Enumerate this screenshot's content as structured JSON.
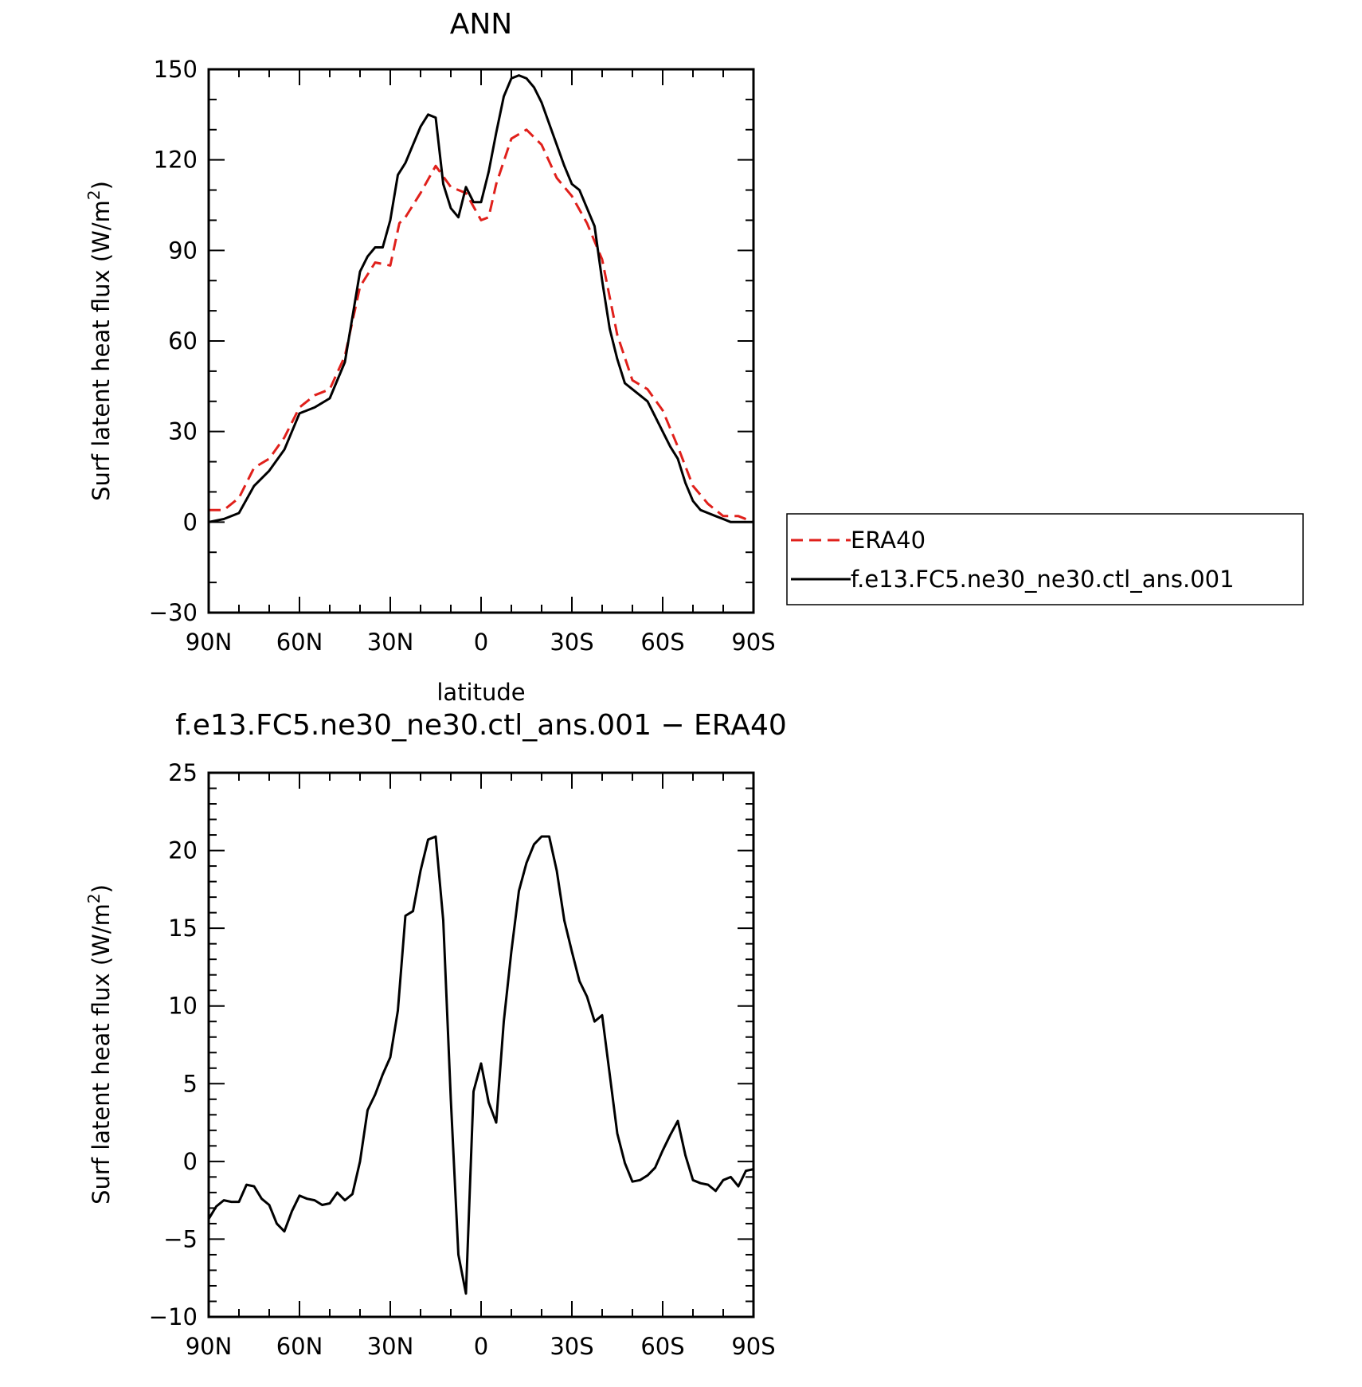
{
  "chart_data": [
    {
      "type": "line",
      "title": "ANN",
      "xlabel": "latitude",
      "ylabel": "Surf latent heat flux (W/m²)",
      "ylim": [
        -30,
        150
      ],
      "xlim": [
        -90,
        90
      ],
      "x_ticks": [
        -90,
        -60,
        -30,
        0,
        30,
        60,
        90
      ],
      "x_tick_labels": [
        "90N",
        "60N",
        "30N",
        "0",
        "30S",
        "60S",
        "90S"
      ],
      "y_ticks": [
        -30,
        0,
        30,
        60,
        90,
        120,
        150
      ],
      "y_tick_labels": [
        "−30",
        "0",
        "30",
        "60",
        "90",
        "120",
        "150"
      ],
      "y_minor_step": 10,
      "x_minor_step": 10,
      "grid": false,
      "legend_position": "right",
      "series": [
        {
          "name": "ERA40",
          "color": "#e0201b",
          "dash": "dashed",
          "x": [
            -90,
            -85,
            -80,
            -75,
            -70,
            -65,
            -60,
            -55,
            -50,
            -45,
            -40,
            -35,
            -30,
            -27,
            -25,
            -20,
            -15,
            -10,
            -5,
            0,
            2.5,
            5,
            10,
            15,
            20,
            25,
            30,
            35,
            40,
            45,
            50,
            55,
            60,
            65,
            70,
            75,
            80,
            85,
            90
          ],
          "y": [
            4,
            4,
            8,
            18,
            21,
            28,
            38,
            42,
            44,
            55,
            78,
            86,
            85,
            99,
            101,
            109,
            118,
            111,
            109,
            100,
            101,
            112,
            127,
            130,
            125,
            114,
            108,
            99,
            87,
            62,
            47,
            44,
            37,
            25,
            12,
            6,
            2,
            2,
            0
          ]
        },
        {
          "name": "f.e13.FC5.ne30_ne30.ctl_ans.001",
          "color": "#000000",
          "dash": "solid",
          "x": [
            -90,
            -85,
            -80,
            -75,
            -70,
            -65,
            -60,
            -55,
            -50,
            -45,
            -40,
            -37.5,
            -35,
            -32.5,
            -30,
            -27.5,
            -25,
            -22.5,
            -20,
            -17.5,
            -15,
            -12.5,
            -10,
            -7.5,
            -5,
            -2.5,
            0,
            2.5,
            5,
            7.5,
            10,
            12.5,
            15,
            17.5,
            20,
            22.5,
            25,
            27.5,
            30,
            32.5,
            35,
            37.5,
            40,
            42.5,
            45,
            47.5,
            50,
            52.5,
            55,
            57.5,
            60,
            62.5,
            65,
            67.5,
            70,
            72.5,
            75,
            77.5,
            80,
            82.5,
            85,
            87.5,
            90
          ],
          "y": [
            0,
            1,
            3,
            12,
            17,
            24,
            36,
            38,
            41,
            53,
            83,
            88,
            91,
            91,
            100,
            115,
            119,
            125,
            131,
            135,
            134,
            112,
            104,
            101,
            111,
            106,
            106,
            116,
            129,
            141,
            147,
            148,
            147,
            144,
            139,
            132,
            125,
            118,
            112,
            110,
            104,
            98,
            80,
            64,
            54,
            46,
            44,
            42,
            40,
            35,
            30,
            25,
            21,
            13,
            7,
            4,
            3,
            2,
            1,
            0,
            0,
            0,
            0
          ]
        }
      ]
    },
    {
      "type": "line",
      "title": "f.e13.FC5.ne30_ne30.ctl_ans.001 − ERA40",
      "xlabel": "latitude",
      "ylabel": "Surf latent heat flux (W/m²)",
      "ylim": [
        -10,
        25
      ],
      "xlim": [
        -90,
        90
      ],
      "x_ticks": [
        -90,
        -60,
        -30,
        0,
        30,
        60,
        90
      ],
      "x_tick_labels": [
        "90N",
        "60N",
        "30N",
        "0",
        "30S",
        "60S",
        "90S"
      ],
      "y_ticks": [
        -10,
        -5,
        0,
        5,
        10,
        15,
        20,
        25
      ],
      "y_tick_labels": [
        "−10",
        "−5",
        "0",
        "5",
        "10",
        "15",
        "20",
        "25"
      ],
      "y_minor_step": 1,
      "x_minor_step": 10,
      "grid": false,
      "series": [
        {
          "name": "",
          "color": "#000000",
          "dash": "solid",
          "x": [
            -90,
            -87.5,
            -85,
            -82.5,
            -80,
            -77.5,
            -75,
            -72.5,
            -70,
            -67.5,
            -65,
            -62.5,
            -60,
            -57.5,
            -55,
            -52.5,
            -50,
            -47.5,
            -45,
            -42.5,
            -40,
            -37.5,
            -35,
            -32.5,
            -30,
            -27.5,
            -25,
            -22.5,
            -20,
            -17.5,
            -15,
            -12.5,
            -10,
            -7.5,
            -5,
            -2.5,
            0,
            2.5,
            5,
            7.5,
            10,
            12.5,
            15,
            17.5,
            20,
            22.5,
            25,
            27.5,
            30,
            32.5,
            35,
            37.5,
            40,
            42.5,
            45,
            47.5,
            50,
            52.5,
            55,
            57.5,
            60,
            62.5,
            65,
            67.5,
            70,
            72.5,
            75,
            77.5,
            80,
            82.5,
            85,
            87.5,
            90
          ],
          "y": [
            -3.7,
            -2.9,
            -2.5,
            -2.6,
            -2.6,
            -1.5,
            -1.6,
            -2.4,
            -2.8,
            -4.0,
            -4.5,
            -3.2,
            -2.2,
            -2.4,
            -2.5,
            -2.8,
            -2.7,
            -2.0,
            -2.5,
            -2.1,
            0,
            3.3,
            4.3,
            5.6,
            6.7,
            9.7,
            15.8,
            16.1,
            18.7,
            20.7,
            20.9,
            15.5,
            4,
            -6,
            -8.5,
            4.5,
            6.3,
            3.8,
            2.5,
            9.0,
            13.5,
            17.4,
            19.2,
            20.4,
            20.9,
            20.9,
            18.7,
            15.5,
            13.5,
            11.6,
            10.6,
            9.0,
            9.4,
            5.6,
            1.8,
            -0.1,
            -1.3,
            -1.2,
            -0.9,
            -0.4,
            0.7,
            1.7,
            2.6,
            0.4,
            -1.2,
            -1.4,
            -1.5,
            -1.9,
            -1.2,
            -1.0,
            -1.6,
            -0.6,
            -0.5
          ]
        }
      ]
    }
  ]
}
